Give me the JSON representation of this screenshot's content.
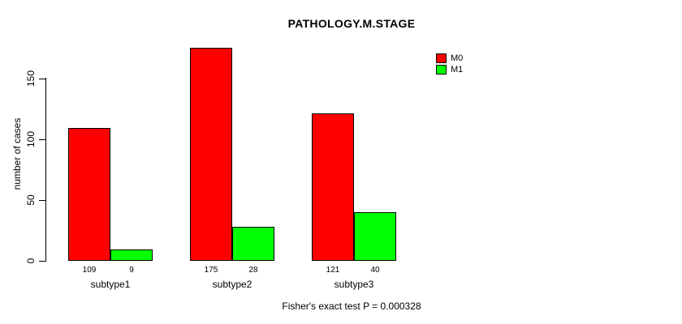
{
  "title": "PATHOLOGY.M.STAGE",
  "ylabel": "number of cases",
  "footer": "Fisher's exact test P = 0.000328",
  "legend": {
    "position": "top-right",
    "items": [
      {
        "label": "M0",
        "color": "#ff0000"
      },
      {
        "label": "M1",
        "color": "#00ff00"
      }
    ]
  },
  "chart_data": {
    "type": "bar",
    "title": "PATHOLOGY.M.STAGE",
    "xlabel": "",
    "ylabel": "number of cases",
    "categories": [
      "subtype1",
      "subtype2",
      "subtype3"
    ],
    "series": [
      {
        "name": "M0",
        "color": "#ff0000",
        "values": [
          109,
          175,
          121
        ]
      },
      {
        "name": "M1",
        "color": "#00ff00",
        "values": [
          9,
          28,
          40
        ]
      }
    ],
    "bar_value_labels": [
      [
        "109",
        "9"
      ],
      [
        "175",
        "28"
      ],
      [
        "121",
        "40"
      ]
    ],
    "yticks": [
      0,
      50,
      100,
      150
    ],
    "ylim": [
      0,
      180
    ],
    "grid": false,
    "annotation": "Fisher's exact test P = 0.000328",
    "legend_position": "top-right"
  }
}
